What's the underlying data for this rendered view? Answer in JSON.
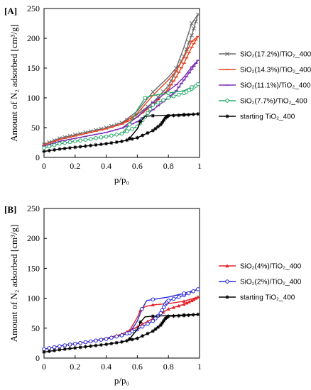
{
  "chart_data": [
    {
      "type": "line",
      "panel_label": "[A]",
      "xlabel": "p/p₀",
      "ylabel": "Amount of N₂ adsorbed [cm³/g]",
      "xlim": [
        0,
        1
      ],
      "ylim": [
        0,
        250
      ],
      "x_ticks": [
        "0",
        "0.2",
        "0.4",
        "0.6",
        "0.8",
        "1"
      ],
      "y_ticks": [
        "0",
        "50",
        "100",
        "150",
        "200",
        "250"
      ],
      "grid": false,
      "legend": "right",
      "series": [
        {
          "name": "SiO₂(17.2%)/TiO₂_400",
          "color": "#6b6b6b",
          "marker": "x",
          "adsorption": [
            [
              0.0,
              22
            ],
            [
              0.1,
              32
            ],
            [
              0.2,
              38
            ],
            [
              0.3,
              44
            ],
            [
              0.4,
              50
            ],
            [
              0.5,
              58
            ],
            [
              0.6,
              72
            ],
            [
              0.7,
              92
            ],
            [
              0.8,
              120
            ],
            [
              0.85,
              145
            ],
            [
              0.9,
              170
            ],
            [
              0.95,
              205
            ],
            [
              0.99,
              240
            ]
          ],
          "desorption": [
            [
              0.99,
              240
            ],
            [
              0.95,
              225
            ],
            [
              0.9,
              185
            ],
            [
              0.85,
              150
            ],
            [
              0.8,
              135
            ],
            [
              0.7,
              110
            ],
            [
              0.6,
              78
            ],
            [
              0.5,
              58
            ]
          ]
        },
        {
          "name": "SiO₂(14.3%)/TiO₂_400",
          "color": "#e8431f",
          "marker": "dash",
          "adsorption": [
            [
              0.0,
              21
            ],
            [
              0.1,
              30
            ],
            [
              0.2,
              36
            ],
            [
              0.3,
              42
            ],
            [
              0.4,
              48
            ],
            [
              0.5,
              56
            ],
            [
              0.6,
              68
            ],
            [
              0.7,
              88
            ],
            [
              0.8,
              115
            ],
            [
              0.85,
              135
            ],
            [
              0.9,
              158
            ],
            [
              0.95,
              185
            ],
            [
              0.99,
              203
            ]
          ],
          "desorption": [
            [
              0.99,
              203
            ],
            [
              0.95,
              195
            ],
            [
              0.9,
              168
            ],
            [
              0.85,
              145
            ],
            [
              0.8,
              130
            ],
            [
              0.7,
              104
            ],
            [
              0.6,
              74
            ],
            [
              0.5,
              56
            ]
          ]
        },
        {
          "name": "SiO₂(11.1%)/TiO₂_400",
          "color": "#7b2fb5",
          "marker": "dash",
          "adsorption": [
            [
              0.0,
              19
            ],
            [
              0.1,
              27
            ],
            [
              0.2,
              32
            ],
            [
              0.3,
              37
            ],
            [
              0.4,
              42
            ],
            [
              0.5,
              49
            ],
            [
              0.6,
              60
            ],
            [
              0.7,
              80
            ],
            [
              0.8,
              100
            ],
            [
              0.85,
              112
            ],
            [
              0.9,
              130
            ],
            [
              0.95,
              148
            ],
            [
              0.99,
              163
            ]
          ],
          "desorption": [
            [
              0.99,
              163
            ],
            [
              0.95,
              152
            ],
            [
              0.9,
              135
            ],
            [
              0.85,
              122
            ],
            [
              0.8,
              112
            ],
            [
              0.7,
              92
            ],
            [
              0.6,
              68
            ],
            [
              0.5,
              49
            ]
          ]
        },
        {
          "name": "SiO₂(7.7%)/TiO₂_400",
          "color": "#26a869",
          "marker": "circle",
          "adsorption": [
            [
              0.0,
              16
            ],
            [
              0.1,
              23
            ],
            [
              0.2,
              27
            ],
            [
              0.3,
              31
            ],
            [
              0.4,
              35
            ],
            [
              0.5,
              40
            ],
            [
              0.6,
              52
            ],
            [
              0.65,
              68
            ],
            [
              0.7,
              88
            ],
            [
              0.8,
              100
            ],
            [
              0.9,
              108
            ],
            [
              0.95,
              115
            ],
            [
              0.99,
              123
            ]
          ],
          "desorption": [
            [
              0.99,
              123
            ],
            [
              0.95,
              118
            ],
            [
              0.9,
              112
            ],
            [
              0.8,
              108
            ],
            [
              0.7,
              104
            ],
            [
              0.65,
              100
            ],
            [
              0.6,
              80
            ],
            [
              0.55,
              55
            ],
            [
              0.5,
              40
            ]
          ]
        },
        {
          "name": "starting  TiO₂_400",
          "color": "#000000",
          "marker": "star",
          "adsorption": [
            [
              0.0,
              10
            ],
            [
              0.1,
              14
            ],
            [
              0.2,
              17
            ],
            [
              0.3,
              20
            ],
            [
              0.4,
              23
            ],
            [
              0.5,
              27
            ],
            [
              0.6,
              33
            ],
            [
              0.7,
              45
            ],
            [
              0.75,
              55
            ],
            [
              0.78,
              66
            ],
            [
              0.8,
              70
            ],
            [
              0.9,
              71
            ],
            [
              0.99,
              73
            ]
          ],
          "desorption": [
            [
              0.99,
              73
            ],
            [
              0.9,
              72
            ],
            [
              0.8,
              71
            ],
            [
              0.7,
              70
            ],
            [
              0.65,
              69
            ],
            [
              0.62,
              60
            ],
            [
              0.6,
              48
            ],
            [
              0.55,
              32
            ]
          ]
        }
      ]
    },
    {
      "type": "line",
      "panel_label": "[B]",
      "xlabel": "p/p₀",
      "ylabel": "Amount of N₂ adsorbed [cm³/g]",
      "xlim": [
        0,
        1
      ],
      "ylim": [
        0,
        250
      ],
      "x_ticks": [
        "0",
        "0.2",
        "0.4",
        "0.6",
        "0.8",
        "1"
      ],
      "y_ticks": [
        "0",
        "50",
        "100",
        "150",
        "200",
        "250"
      ],
      "grid": false,
      "legend": "right",
      "series": [
        {
          "name": "SiO₂(4%)/TiO₂_400",
          "color": "#e8202a",
          "marker": "triangle",
          "adsorption": [
            [
              0.0,
              15
            ],
            [
              0.1,
              20
            ],
            [
              0.2,
              24
            ],
            [
              0.3,
              28
            ],
            [
              0.4,
              33
            ],
            [
              0.5,
              40
            ],
            [
              0.6,
              52
            ],
            [
              0.7,
              66
            ],
            [
              0.8,
              82
            ],
            [
              0.9,
              90
            ],
            [
              0.95,
              96
            ],
            [
              0.99,
              102
            ]
          ],
          "desorption": [
            [
              0.99,
              102
            ],
            [
              0.9,
              95
            ],
            [
              0.8,
              91
            ],
            [
              0.7,
              89
            ],
            [
              0.65,
              86
            ],
            [
              0.62,
              80
            ],
            [
              0.6,
              68
            ],
            [
              0.55,
              46
            ],
            [
              0.5,
              40
            ]
          ]
        },
        {
          "name": "SiO₂(2%)/TiO₂_400",
          "color": "#2a2ad8",
          "marker": "circle",
          "adsorption": [
            [
              0.0,
              15
            ],
            [
              0.1,
              20
            ],
            [
              0.2,
              24
            ],
            [
              0.3,
              28
            ],
            [
              0.4,
              32
            ],
            [
              0.5,
              38
            ],
            [
              0.6,
              48
            ],
            [
              0.7,
              62
            ],
            [
              0.75,
              75
            ],
            [
              0.78,
              90
            ],
            [
              0.8,
              96
            ],
            [
              0.9,
              105
            ],
            [
              0.99,
              115
            ]
          ],
          "desorption": [
            [
              0.99,
              115
            ],
            [
              0.9,
              108
            ],
            [
              0.8,
              102
            ],
            [
              0.7,
              98
            ],
            [
              0.66,
              96
            ],
            [
              0.63,
              82
            ],
            [
              0.6,
              62
            ],
            [
              0.55,
              42
            ],
            [
              0.5,
              38
            ]
          ]
        },
        {
          "name": "starting  TiO₂_400",
          "color": "#000000",
          "marker": "star",
          "adsorption": [
            [
              0.0,
              10
            ],
            [
              0.1,
              14
            ],
            [
              0.2,
              17
            ],
            [
              0.3,
              20
            ],
            [
              0.4,
              23
            ],
            [
              0.5,
              27
            ],
            [
              0.6,
              33
            ],
            [
              0.7,
              45
            ],
            [
              0.75,
              55
            ],
            [
              0.78,
              66
            ],
            [
              0.8,
              70
            ],
            [
              0.9,
              71
            ],
            [
              0.99,
              73
            ]
          ],
          "desorption": [
            [
              0.99,
              73
            ],
            [
              0.9,
              72
            ],
            [
              0.8,
              71
            ],
            [
              0.7,
              70
            ],
            [
              0.65,
              69
            ],
            [
              0.62,
              60
            ],
            [
              0.6,
              48
            ],
            [
              0.55,
              32
            ]
          ]
        }
      ]
    }
  ]
}
